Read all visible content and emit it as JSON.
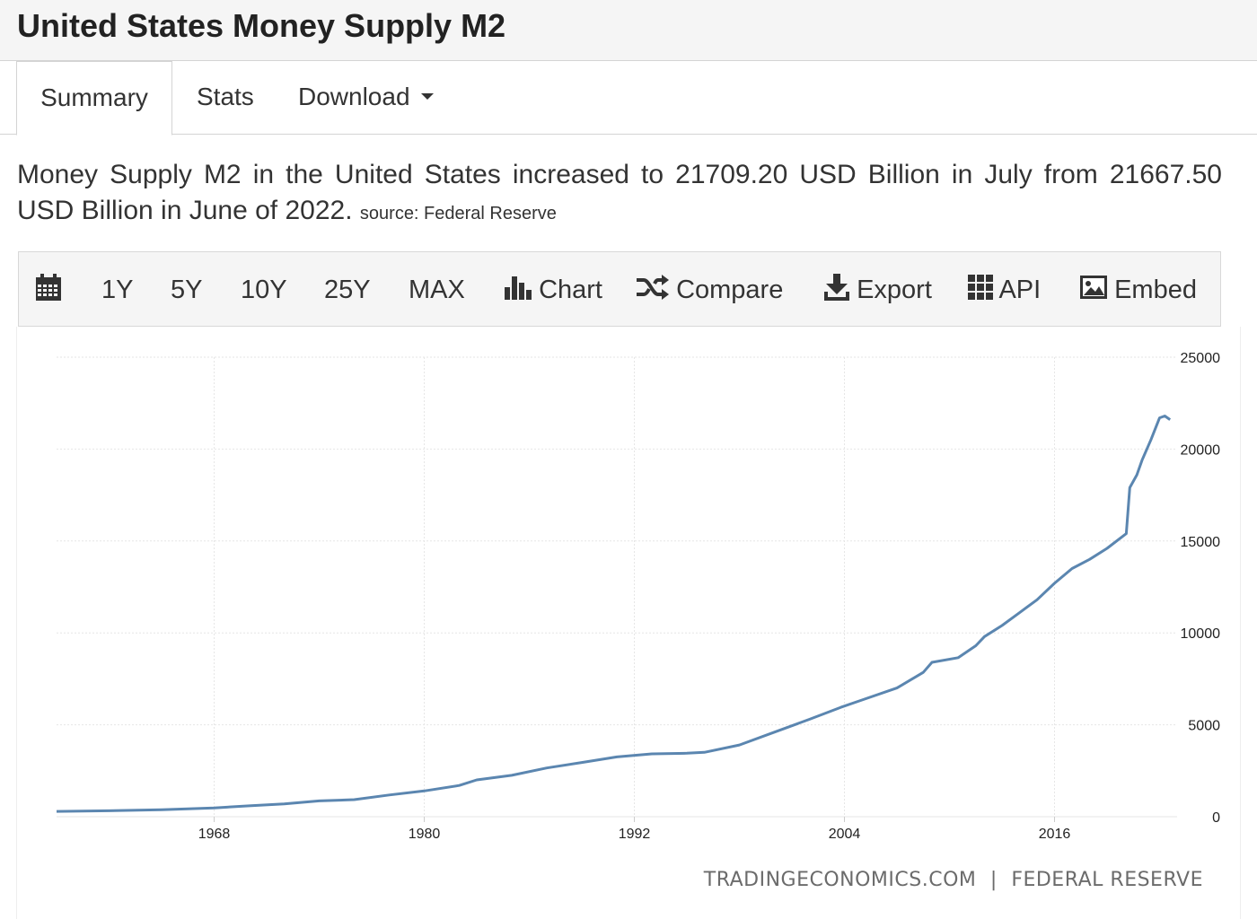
{
  "page": {
    "title": "United States Money Supply M2"
  },
  "tabs": [
    {
      "label": "Summary"
    },
    {
      "label": "Stats"
    },
    {
      "label": "Download"
    }
  ],
  "summary": {
    "text": "Money Supply M2 in the United States increased to 21709.20 USD Billion in July from 21667.50 USD Billion in June of 2022.",
    "source": "source: Federal Reserve"
  },
  "toolbar": {
    "calendar_icon": "calendar-icon",
    "ranges": [
      "1Y",
      "5Y",
      "10Y",
      "25Y",
      "MAX"
    ],
    "chart_label": "Chart",
    "compare_label": "Compare",
    "export_label": "Export",
    "api_label": "API",
    "embed_label": "Embed"
  },
  "colors": {
    "line": "#5b86b0",
    "grid": "#e6e6e6",
    "toolbar_bg": "#f5f5f5"
  },
  "watermark": {
    "left": "TRADINGECONOMICS.COM",
    "separator": "|",
    "right": "FEDERAL RESERVE"
  },
  "chart_data": {
    "type": "line",
    "title": "",
    "xlabel": "",
    "ylabel": "",
    "x_ticks": [
      "1968",
      "1980",
      "1992",
      "2004",
      "2016"
    ],
    "y_ticks": [
      0,
      5000,
      10000,
      15000,
      20000,
      25000
    ],
    "xlim": [
      1959,
      2023
    ],
    "ylim": [
      0,
      25000
    ],
    "grid": true,
    "y_axis_position": "right",
    "series": [
      {
        "values": [
          {
            "x": 1959.0,
            "y": 287
          },
          {
            "x": 1962.0,
            "y": 320
          },
          {
            "x": 1965.0,
            "y": 380
          },
          {
            "x": 1968.0,
            "y": 480
          },
          {
            "x": 1970.0,
            "y": 590
          },
          {
            "x": 1972.0,
            "y": 700
          },
          {
            "x": 1974.0,
            "y": 860
          },
          {
            "x": 1976.0,
            "y": 930
          },
          {
            "x": 1978.0,
            "y": 1180
          },
          {
            "x": 1980.0,
            "y": 1400
          },
          {
            "x": 1982.0,
            "y": 1700
          },
          {
            "x": 1983.0,
            "y": 2000
          },
          {
            "x": 1985.0,
            "y": 2250
          },
          {
            "x": 1987.0,
            "y": 2650
          },
          {
            "x": 1989.0,
            "y": 2950
          },
          {
            "x": 1991.0,
            "y": 3250
          },
          {
            "x": 1993.0,
            "y": 3420
          },
          {
            "x": 1995.0,
            "y": 3450
          },
          {
            "x": 1996.0,
            "y": 3500
          },
          {
            "x": 1998.0,
            "y": 3900
          },
          {
            "x": 2000.0,
            "y": 4600
          },
          {
            "x": 2002.0,
            "y": 5300
          },
          {
            "x": 2003.8,
            "y": 5950
          },
          {
            "x": 2005.0,
            "y": 6350
          },
          {
            "x": 2007.0,
            "y": 7000
          },
          {
            "x": 2008.5,
            "y": 7850
          },
          {
            "x": 2009.0,
            "y": 8400
          },
          {
            "x": 2010.5,
            "y": 8650
          },
          {
            "x": 2011.5,
            "y": 9300
          },
          {
            "x": 2012.0,
            "y": 9800
          },
          {
            "x": 2013.0,
            "y": 10400
          },
          {
            "x": 2014.0,
            "y": 11100
          },
          {
            "x": 2015.0,
            "y": 11800
          },
          {
            "x": 2016.0,
            "y": 12700
          },
          {
            "x": 2017.0,
            "y": 13500
          },
          {
            "x": 2018.0,
            "y": 14000
          },
          {
            "x": 2019.0,
            "y": 14600
          },
          {
            "x": 2020.1,
            "y": 15400
          },
          {
            "x": 2020.3,
            "y": 17900
          },
          {
            "x": 2020.7,
            "y": 18600
          },
          {
            "x": 2021.0,
            "y": 19400
          },
          {
            "x": 2021.5,
            "y": 20500
          },
          {
            "x": 2022.0,
            "y": 21700
          },
          {
            "x": 2022.3,
            "y": 21800
          },
          {
            "x": 2022.6,
            "y": 21600
          }
        ]
      }
    ]
  }
}
